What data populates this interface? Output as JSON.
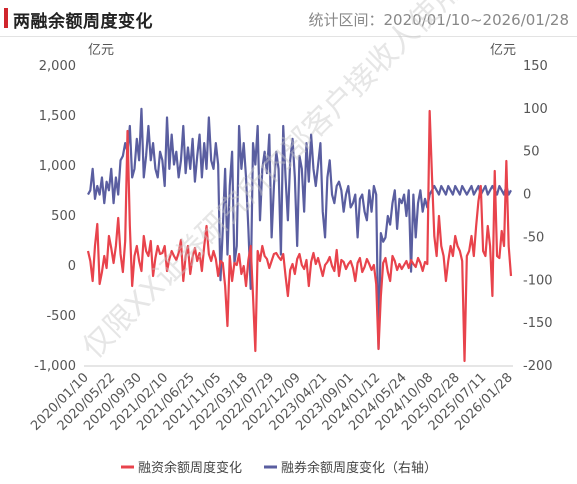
{
  "header": {
    "title": "两融余额周度变化",
    "range_text": "统计区间：2020/01/10~2026/01/28",
    "accent_color": "#d0252d"
  },
  "watermark": "仅限XX证券研究所内部客户接收人使用",
  "chart_data": {
    "type": "line",
    "left_axis": {
      "unit": "亿元",
      "ylim": [
        -1000,
        2000
      ],
      "ticks": [
        "2,000",
        "1,500",
        "1,000",
        "500",
        "0",
        "-500",
        "-1,000"
      ]
    },
    "right_axis": {
      "unit": "亿元",
      "ylim": [
        -200,
        150
      ],
      "ticks": [
        "150",
        "100",
        "50",
        "0",
        "-50",
        "-100",
        "-150",
        "-200"
      ]
    },
    "x_tick_labels": [
      "2020/01/10",
      "2020/05/22",
      "2020/09/30",
      "2021/02/10",
      "2021/06/25",
      "2021/11/05",
      "2022/03/18",
      "2022/07/29",
      "2022/12/09",
      "2023/04/21",
      "2023/09/01",
      "2024/01/12",
      "2024/05/24",
      "2024/10/08",
      "2025/02/28",
      "2025/07/11",
      "2026/01/28"
    ],
    "grid": false,
    "legend_position": "bottom",
    "series": [
      {
        "name": "融资余额周度变化",
        "axis": "left",
        "color": "#e8434c",
        "values": [
          150,
          50,
          -150,
          200,
          420,
          -180,
          -60,
          100,
          -20,
          300,
          180,
          30,
          200,
          480,
          120,
          -60,
          250,
          1350,
          400,
          -200,
          100,
          200,
          50,
          -50,
          300,
          150,
          100,
          250,
          -100,
          80,
          200,
          120,
          130,
          200,
          -50,
          70,
          150,
          100,
          60,
          130,
          260,
          -150,
          100,
          200,
          -80,
          90,
          180,
          50,
          130,
          -50,
          200,
          400,
          120,
          50,
          150,
          70,
          -100,
          50,
          30,
          -200,
          -600,
          100,
          -150,
          30,
          10,
          120,
          -80,
          0,
          -200,
          60,
          200,
          -300,
          -850,
          150,
          50,
          200,
          100,
          70,
          -20,
          50,
          120,
          130,
          90,
          60,
          120,
          -100,
          -300,
          -40,
          20,
          -80,
          70,
          120,
          10,
          -30,
          60,
          -200,
          40,
          130,
          20,
          80,
          -10,
          -100,
          10,
          40,
          90,
          0,
          -50,
          160,
          -100,
          60,
          40,
          -30,
          20,
          50,
          -20,
          -150,
          30,
          80,
          -60,
          -10,
          70,
          20,
          -40,
          10,
          -180,
          -830,
          -300,
          30,
          80,
          -60,
          -150,
          100,
          50,
          -40,
          20,
          -30,
          10,
          50,
          -20,
          60,
          20,
          -10,
          80,
          30,
          -50,
          40,
          20,
          1550,
          900,
          300,
          100,
          500,
          200,
          100,
          -150,
          50,
          200,
          100,
          300,
          200,
          150,
          50,
          -950,
          100,
          150,
          300,
          100,
          400,
          650,
          800,
          150,
          100,
          400,
          200,
          -300,
          950,
          100,
          80,
          350,
          200,
          1050,
          200,
          -100
        ]
      },
      {
        "name": "融券余额周度变化（右轴）",
        "axis": "right",
        "color": "#5a5ea0",
        "values": [
          0,
          5,
          30,
          -5,
          10,
          0,
          20,
          -10,
          15,
          5,
          30,
          -10,
          20,
          0,
          40,
          45,
          60,
          50,
          80,
          20,
          30,
          65,
          40,
          100,
          20,
          45,
          80,
          40,
          60,
          30,
          20,
          50,
          40,
          10,
          90,
          30,
          70,
          35,
          50,
          20,
          40,
          80,
          25,
          55,
          30,
          65,
          15,
          45,
          70,
          20,
          60,
          30,
          90,
          40,
          30,
          60,
          35,
          -100,
          -40,
          30,
          -70,
          10,
          50,
          -80,
          -60,
          80,
          30,
          60,
          20,
          -40,
          -110,
          60,
          35,
          80,
          -30,
          30,
          50,
          25,
          70,
          -50,
          10,
          50,
          30,
          -70,
          80,
          20,
          -30,
          40,
          65,
          20,
          -60,
          45,
          30,
          -20,
          60,
          15,
          70,
          30,
          10,
          35,
          60,
          -20,
          -50,
          20,
          40,
          0,
          -10,
          10,
          15,
          5,
          -20,
          0,
          10,
          -15,
          -10,
          0,
          -50,
          -5,
          0,
          -20,
          -30,
          5,
          -20,
          10,
          0,
          -180,
          -45,
          -55,
          -50,
          -25,
          -35,
          -10,
          5,
          -40,
          -5,
          -10,
          0,
          -25,
          5,
          -90,
          0,
          -50,
          -10,
          5,
          -20,
          -5,
          -15,
          0,
          5,
          10,
          5,
          0,
          10,
          5,
          0,
          10,
          5,
          0,
          10,
          5,
          0,
          10,
          5,
          0,
          5,
          10,
          0,
          5,
          10,
          0,
          5,
          10,
          0,
          5,
          10,
          5,
          0,
          10,
          5,
          0,
          10,
          0,
          5
        ]
      }
    ]
  }
}
